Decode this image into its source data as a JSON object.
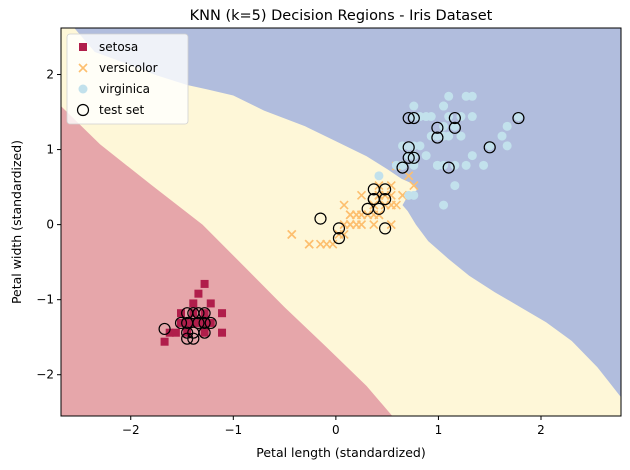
{
  "chart_data": {
    "type": "scatter",
    "title": "KNN (k=5) Decision Regions - Iris Dataset",
    "xlabel": "Petal length (standardized)",
    "ylabel": "Petal width (standardized)",
    "xlim": [
      -2.68,
      2.78
    ],
    "ylim": [
      -2.55,
      2.62
    ],
    "xticks": [
      -2,
      -1,
      0,
      1,
      2
    ],
    "yticks": [
      -2,
      -1,
      0,
      1,
      2
    ],
    "grid": false,
    "legend_position": "top-left",
    "region_colors": {
      "setosa": "#e6a6aa",
      "versicolor": "#fef7d8",
      "virginica": "#b1bddd"
    },
    "series": [
      {
        "name": "setosa",
        "marker": "square",
        "color": "#b01e4b",
        "points": [
          [
            -1.34,
            -1.31
          ],
          [
            -1.39,
            -1.31
          ],
          [
            -1.28,
            -1.31
          ],
          [
            -1.45,
            -1.31
          ],
          [
            -1.39,
            -1.18
          ],
          [
            -1.22,
            -1.05
          ],
          [
            -1.28,
            -1.18
          ],
          [
            -1.56,
            -1.44
          ],
          [
            -1.45,
            -1.44
          ],
          [
            -1.28,
            -1.44
          ],
          [
            -1.62,
            -1.44
          ],
          [
            -1.11,
            -1.44
          ],
          [
            -1.34,
            -0.92
          ],
          [
            -1.51,
            -1.31
          ],
          [
            -1.22,
            -1.31
          ],
          [
            -1.28,
            -0.79
          ],
          [
            -1.11,
            -1.18
          ],
          [
            -1.51,
            -1.18
          ],
          [
            -1.39,
            -1.05
          ],
          [
            -1.67,
            -1.56
          ]
        ]
      },
      {
        "name": "versicolor",
        "marker": "x",
        "color": "#fdbf6f",
        "points": [
          [
            0.54,
            0.26
          ],
          [
            0.42,
            0.39
          ],
          [
            0.65,
            0.39
          ],
          [
            0.14,
            0.13
          ],
          [
            0.48,
            0.39
          ],
          [
            0.42,
            0.13
          ],
          [
            0.54,
            0.52
          ],
          [
            -0.26,
            -0.26
          ],
          [
            0.42,
            0.13
          ],
          [
            0.08,
            0.26
          ],
          [
            -0.15,
            -0.26
          ],
          [
            0.25,
            0.39
          ],
          [
            0.14,
            0.0
          ],
          [
            0.54,
            0.26
          ],
          [
            -0.43,
            -0.13
          ],
          [
            0.37,
            0.26
          ],
          [
            0.42,
            0.39
          ],
          [
            0.2,
            0.0
          ],
          [
            0.42,
            0.39
          ],
          [
            0.08,
            -0.13
          ],
          [
            0.59,
            0.78
          ],
          [
            0.14,
            0.13
          ],
          [
            0.65,
            0.39
          ],
          [
            0.54,
            0.0
          ],
          [
            0.31,
            0.13
          ],
          [
            0.37,
            0.26
          ],
          [
            0.59,
            0.26
          ],
          [
            0.71,
            0.65
          ],
          [
            0.42,
            0.39
          ],
          [
            -0.09,
            -0.26
          ],
          [
            0.03,
            -0.13
          ],
          [
            -0.03,
            -0.26
          ],
          [
            0.08,
            0.0
          ],
          [
            0.76,
            0.52
          ],
          [
            0.42,
            0.39
          ],
          [
            0.42,
            0.52
          ],
          [
            0.54,
            0.39
          ],
          [
            0.37,
            0.13
          ],
          [
            0.2,
            0.13
          ],
          [
            0.14,
            0.13
          ],
          [
            0.37,
            0.0
          ],
          [
            0.48,
            0.26
          ],
          [
            0.14,
            0.0
          ],
          [
            -0.26,
            -0.26
          ],
          [
            0.25,
            0.13
          ],
          [
            0.25,
            0.0
          ],
          [
            0.25,
            0.13
          ],
          [
            0.31,
            0.13
          ],
          [
            -0.43,
            -0.13
          ],
          [
            0.2,
            0.13
          ]
        ]
      },
      {
        "name": "virginica",
        "marker": "circle",
        "color": "#c2e1ec",
        "points": [
          [
            1.27,
            1.71
          ],
          [
            0.76,
            0.92
          ],
          [
            1.22,
            1.18
          ],
          [
            1.05,
            0.79
          ],
          [
            1.16,
            1.31
          ],
          [
            1.62,
            1.18
          ],
          [
            0.42,
            0.65
          ],
          [
            1.44,
            0.79
          ],
          [
            1.16,
            0.79
          ],
          [
            1.33,
            1.71
          ],
          [
            0.76,
            1.05
          ],
          [
            0.88,
            0.92
          ],
          [
            0.99,
            1.18
          ],
          [
            0.71,
            1.05
          ],
          [
            0.76,
            1.58
          ],
          [
            0.88,
            1.44
          ],
          [
            0.99,
            0.79
          ],
          [
            1.67,
            1.31
          ],
          [
            1.78,
            1.44
          ],
          [
            0.71,
            0.39
          ],
          [
            1.1,
            1.44
          ],
          [
            0.65,
            1.05
          ],
          [
            1.67,
            1.05
          ],
          [
            0.65,
            0.79
          ],
          [
            1.1,
            1.18
          ],
          [
            1.27,
            0.79
          ],
          [
            0.59,
            0.79
          ],
          [
            0.65,
            0.79
          ],
          [
            1.05,
            1.18
          ],
          [
            1.16,
            0.52
          ],
          [
            1.33,
            0.92
          ],
          [
            1.5,
            1.05
          ],
          [
            1.05,
            1.31
          ],
          [
            0.76,
            0.39
          ],
          [
            1.05,
            0.26
          ],
          [
            1.33,
            1.44
          ],
          [
            1.05,
            1.58
          ],
          [
            0.99,
            0.79
          ],
          [
            0.59,
            0.79
          ],
          [
            0.93,
            1.18
          ],
          [
            1.05,
            1.58
          ],
          [
            0.76,
            1.44
          ],
          [
            0.76,
            0.92
          ],
          [
            1.22,
            1.44
          ],
          [
            1.1,
            1.71
          ],
          [
            0.82,
            1.44
          ],
          [
            0.71,
            0.92
          ],
          [
            0.82,
            1.05
          ],
          [
            0.93,
            1.44
          ],
          [
            0.76,
            0.79
          ]
        ]
      },
      {
        "name": "test set",
        "marker": "circle-open",
        "color": "#000000",
        "points": [
          [
            -1.67,
            -1.39
          ],
          [
            -1.45,
            -1.18
          ],
          [
            -1.39,
            -1.18
          ],
          [
            -1.34,
            -1.18
          ],
          [
            -1.28,
            -1.18
          ],
          [
            -1.45,
            -1.31
          ],
          [
            -1.34,
            -1.31
          ],
          [
            -1.22,
            -1.31
          ],
          [
            -1.45,
            -1.44
          ],
          [
            -1.39,
            -1.44
          ],
          [
            -1.28,
            -1.44
          ],
          [
            -1.45,
            -1.52
          ],
          [
            -1.39,
            -1.52
          ],
          [
            -1.51,
            -1.31
          ],
          [
            -1.28,
            -1.31
          ],
          [
            -0.15,
            0.08
          ],
          [
            0.03,
            -0.05
          ],
          [
            0.03,
            -0.18
          ],
          [
            0.31,
            0.21
          ],
          [
            0.37,
            0.34
          ],
          [
            0.42,
            0.21
          ],
          [
            0.37,
            0.47
          ],
          [
            0.48,
            0.47
          ],
          [
            0.48,
            0.34
          ],
          [
            0.48,
            -0.05
          ],
          [
            0.37,
            0.34
          ],
          [
            0.65,
            0.76
          ],
          [
            0.71,
            0.89
          ],
          [
            0.71,
            1.03
          ],
          [
            0.76,
            0.89
          ],
          [
            0.71,
            1.42
          ],
          [
            0.76,
            1.42
          ],
          [
            0.99,
            1.16
          ],
          [
            0.99,
            1.29
          ],
          [
            1.16,
            1.29
          ],
          [
            1.16,
            1.42
          ],
          [
            1.1,
            0.76
          ],
          [
            1.5,
            1.03
          ],
          [
            1.78,
            1.42
          ]
        ]
      }
    ]
  }
}
